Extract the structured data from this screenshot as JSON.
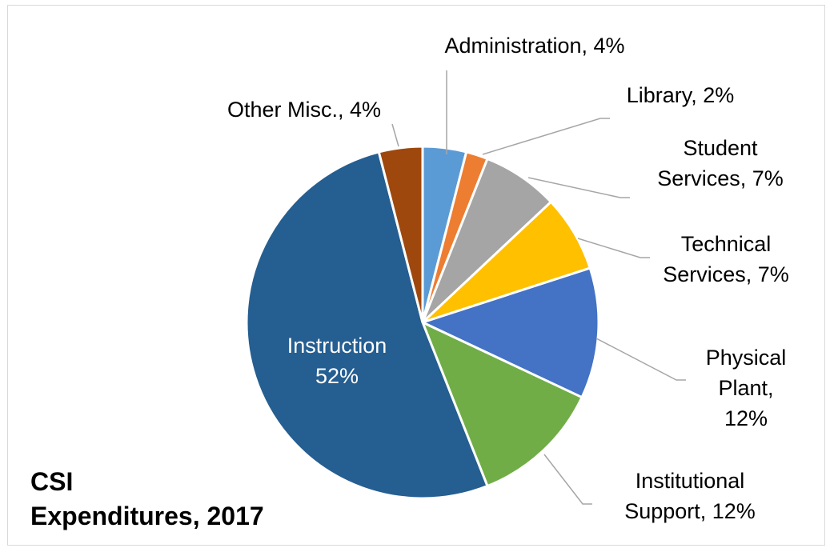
{
  "chart_data": {
    "type": "pie",
    "title_lines": [
      "CSI",
      "Expenditures, 2017"
    ],
    "start_angle_deg": 0,
    "direction": "clockwise",
    "slices": [
      {
        "label_lines": [
          "Administration, 4%"
        ],
        "value": 4,
        "color": "#5b9bd5"
      },
      {
        "label_lines": [
          "Library, 2%"
        ],
        "value": 2,
        "color": "#ed7d31"
      },
      {
        "label_lines": [
          "Student",
          "Services, 7%"
        ],
        "value": 7,
        "color": "#a5a5a5"
      },
      {
        "label_lines": [
          "Technical",
          "Services, 7%"
        ],
        "value": 7,
        "color": "#ffc000"
      },
      {
        "label_lines": [
          "Physical",
          "Plant,",
          "12%"
        ],
        "value": 12,
        "color": "#4472c4"
      },
      {
        "label_lines": [
          "Institutional",
          "Support, 12%"
        ],
        "value": 12,
        "color": "#70ad47"
      },
      {
        "label_lines": [
          "Instruction",
          "52%"
        ],
        "value": 52,
        "color": "#255e91",
        "label_inside": true
      },
      {
        "label_lines": [
          "Other Misc., 4%"
        ],
        "value": 4,
        "color": "#9e480e"
      }
    ]
  }
}
